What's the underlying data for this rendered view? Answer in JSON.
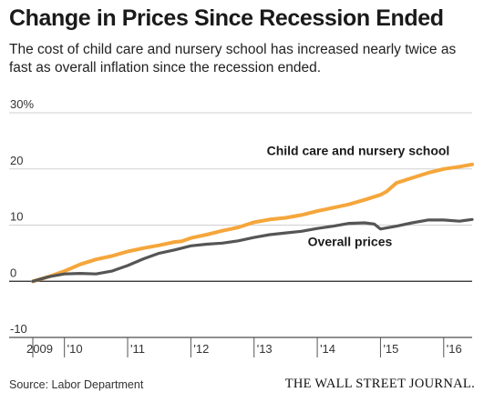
{
  "header": {
    "title": "Change in Prices Since Recession Ended",
    "subtitle": "The cost of child care and nursery school has increased nearly twice as fast as overall inflation since the recession ended."
  },
  "footer": {
    "source": "Source: Labor Department",
    "brand": "THE WALL STREET JOURNAL."
  },
  "colors": {
    "child_care": "#f5a63b",
    "overall": "#555555",
    "grid": "#d0d0d0",
    "zero_line": "#222222"
  },
  "chart_data": {
    "type": "line",
    "title": "Change in Prices Since Recession Ended",
    "ylim": [
      -10,
      30
    ],
    "xlim": [
      2009.5,
      2016.45
    ],
    "y_ticks": [
      {
        "value": 30,
        "label": "30%"
      },
      {
        "value": 20,
        "label": "20"
      },
      {
        "value": 10,
        "label": "10"
      },
      {
        "value": 0,
        "label": "0"
      },
      {
        "value": -10,
        "label": "-10"
      }
    ],
    "x_ticks": [
      {
        "value": 2009.5,
        "label": "2009"
      },
      {
        "value": 2010,
        "label": "'10"
      },
      {
        "value": 2011,
        "label": "'11"
      },
      {
        "value": 2012,
        "label": "'12"
      },
      {
        "value": 2013,
        "label": "'13"
      },
      {
        "value": 2014,
        "label": "'14"
      },
      {
        "value": 2015,
        "label": "'15"
      },
      {
        "value": 2016,
        "label": "'16"
      }
    ],
    "grid": true,
    "series": [
      {
        "name": "Child care and nursery school",
        "color": "#f5a63b",
        "label_x": 2013.2,
        "label_y": 22.5,
        "x": [
          2009.5,
          2009.75,
          2010.0,
          2010.25,
          2010.5,
          2010.75,
          2011.0,
          2011.25,
          2011.5,
          2011.75,
          2011.85,
          2012.0,
          2012.25,
          2012.5,
          2012.75,
          2013.0,
          2013.25,
          2013.5,
          2013.75,
          2014.0,
          2014.25,
          2014.5,
          2014.75,
          2015.0,
          2015.1,
          2015.25,
          2015.5,
          2015.75,
          2016.0,
          2016.25,
          2016.45
        ],
        "y": [
          0.0,
          0.8,
          1.8,
          3.0,
          3.9,
          4.5,
          5.3,
          5.9,
          6.4,
          7.0,
          7.1,
          7.7,
          8.3,
          9.0,
          9.6,
          10.5,
          11.0,
          11.3,
          11.8,
          12.5,
          13.1,
          13.7,
          14.5,
          15.4,
          16.0,
          17.5,
          18.4,
          19.3,
          20.0,
          20.4,
          20.8
        ]
      },
      {
        "name": "Overall prices",
        "color": "#555555",
        "label_x": 2013.85,
        "label_y": 6.3,
        "x": [
          2009.5,
          2009.75,
          2010.0,
          2010.25,
          2010.5,
          2010.75,
          2011.0,
          2011.25,
          2011.5,
          2011.75,
          2012.0,
          2012.25,
          2012.5,
          2012.75,
          2013.0,
          2013.25,
          2013.5,
          2013.75,
          2014.0,
          2014.25,
          2014.5,
          2014.75,
          2014.9,
          2015.0,
          2015.25,
          2015.5,
          2015.75,
          2016.0,
          2016.25,
          2016.45
        ],
        "y": [
          0.0,
          0.8,
          1.3,
          1.4,
          1.3,
          1.8,
          2.8,
          4.0,
          5.0,
          5.6,
          6.3,
          6.6,
          6.8,
          7.2,
          7.8,
          8.3,
          8.6,
          8.9,
          9.4,
          9.8,
          10.3,
          10.4,
          10.2,
          9.3,
          9.8,
          10.4,
          10.9,
          10.9,
          10.7,
          11.0
        ]
      }
    ]
  }
}
